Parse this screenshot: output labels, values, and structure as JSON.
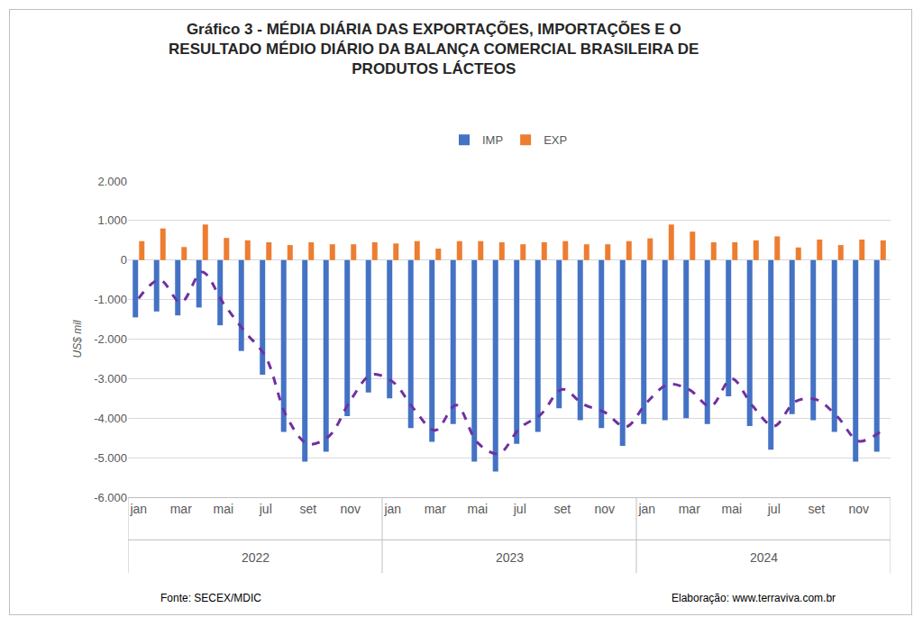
{
  "chart_data": {
    "type": "bar",
    "title": [
      "Gráfico 3 - MÉDIA DIÁRIA DAS EXPORTAÇÕES, IMPORTAÇÕES E O",
      "RESULTADO MÉDIO DIÁRIO DA BALANÇA COMERCIAL BRASILEIRA DE",
      "PRODUTOS LÁCTEOS"
    ],
    "y_label": "US$ mil",
    "categories": [
      "jan",
      null,
      "mar",
      null,
      "mai",
      null,
      "jul",
      null,
      "set",
      null,
      "nov",
      null,
      "jan",
      null,
      "mar",
      null,
      "mai",
      null,
      "jul",
      null,
      "set",
      null,
      "nov",
      null,
      "jan",
      null,
      "mar",
      null,
      "mai",
      null,
      "jul",
      null,
      "set",
      null,
      "nov",
      null
    ],
    "category_groups": [
      "2022",
      "2023",
      "2024"
    ],
    "series": [
      {
        "name": "IMP",
        "color": "#4472c4",
        "values": [
          -1450,
          -1300,
          -1400,
          -1200,
          -1650,
          -2300,
          -2900,
          -4350,
          -5100,
          -4850,
          -3950,
          -3350,
          -3500,
          -4250,
          -4600,
          -4150,
          -5100,
          -5350,
          -4650,
          -4350,
          -3750,
          -4050,
          -4250,
          -4700,
          -4150,
          -4050,
          -4000,
          -4150,
          -3450,
          -4200,
          -4800,
          -3900,
          -4050,
          -4350,
          -5100,
          -4850
        ]
      },
      {
        "name": "EXP",
        "color": "#ed7d31",
        "values": [
          480,
          800,
          330,
          900,
          560,
          500,
          450,
          380,
          450,
          400,
          400,
          450,
          420,
          480,
          290,
          480,
          480,
          450,
          400,
          450,
          480,
          400,
          400,
          480,
          550,
          900,
          720,
          450,
          450,
          500,
          600,
          320,
          520,
          380,
          520,
          500
        ]
      },
      {
        "type": "line",
        "line_style": "dash",
        "color": "#7030a0",
        "values": [
          -970,
          -500,
          -1070,
          -300,
          -1090,
          -1800,
          -2450,
          -3970,
          -4650,
          -4450,
          -3550,
          -2900,
          -3080,
          -3770,
          -4310,
          -3670,
          -4620,
          -4900,
          -4250,
          -3900,
          -3270,
          -3650,
          -3850,
          -4220,
          -3600,
          -3150,
          -3280,
          -3700,
          -3000,
          -3700,
          -4200,
          -3580,
          -3530,
          -3970,
          -4580,
          -4350
        ]
      }
    ],
    "ylim": [
      -6000,
      2000
    ],
    "yticks": [
      {
        "value": 2000,
        "label": "2.000"
      },
      {
        "value": 1000,
        "label": "1.000"
      },
      0,
      {
        "value": -1000,
        "label": "-1.000"
      },
      {
        "value": -2000,
        "label": "-2.000"
      },
      {
        "value": -3000,
        "label": "-3.000"
      },
      {
        "value": -4000,
        "label": "-4.000"
      },
      {
        "value": -5000,
        "label": "-5.000"
      },
      {
        "value": -6000,
        "label": "-6.000"
      }
    ],
    "grid": true,
    "legend": "top",
    "source": "Fonte: SECEX/MDIC",
    "credit": "Elaboração: www.terraviva.com.br"
  }
}
